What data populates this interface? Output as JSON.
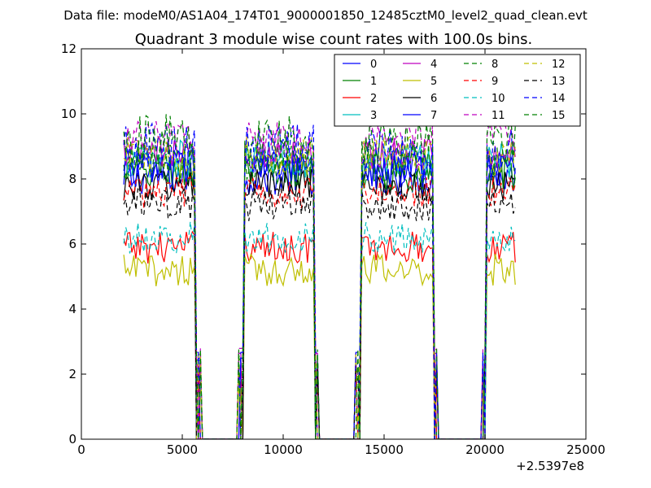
{
  "figure": {
    "suptitle": "Data file: modeM0/AS1A04_174T01_9000001850_12485cztM0_level2_quad_clean.evt"
  },
  "chart_data": {
    "type": "line",
    "title": "Quadrant 3 module wise count rates with 100.0s bins.",
    "xlabel": "",
    "ylabel": "",
    "xlim": [
      0,
      25000
    ],
    "ylim": [
      0,
      12
    ],
    "x_ticks": [
      0,
      5000,
      10000,
      15000,
      20000,
      25000
    ],
    "x_tick_labels": [
      "0",
      "5000",
      "10000",
      "15000",
      "20000",
      "25000"
    ],
    "y_ticks": [
      0,
      2,
      4,
      6,
      8,
      10,
      12
    ],
    "y_tick_labels": [
      "0",
      "2",
      "4",
      "6",
      "8",
      "10",
      "12"
    ],
    "x_offset_label": "+2.5397e8",
    "grid": false,
    "legend_position": "top-right",
    "legend_columns": 4,
    "segments": [
      {
        "t0": 2100,
        "t1": 5600
      },
      {
        "t0": 8100,
        "t1": 11500
      },
      {
        "t0": 13900,
        "t1": 17400
      },
      {
        "t0": 20100,
        "t1": 21500
      }
    ],
    "gaps": [
      {
        "t0": 5900,
        "t1": 7800
      },
      {
        "t0": 11700,
        "t1": 13600
      },
      {
        "t0": 17600,
        "t1": 19900
      }
    ],
    "series": [
      {
        "name": "0",
        "color": "#0000ff",
        "dash": "solid",
        "base": 8.1,
        "amp": 0.6
      },
      {
        "name": "1",
        "color": "#008000",
        "dash": "solid",
        "base": 8.2,
        "amp": 0.6
      },
      {
        "name": "2",
        "color": "#ff0000",
        "dash": "solid",
        "base": 5.9,
        "amp": 0.5
      },
      {
        "name": "3",
        "color": "#00bfbf",
        "dash": "solid",
        "base": 8.6,
        "amp": 0.6
      },
      {
        "name": "4",
        "color": "#bf00bf",
        "dash": "solid",
        "base": 8.8,
        "amp": 0.5
      },
      {
        "name": "5",
        "color": "#bfbf00",
        "dash": "solid",
        "base": 5.2,
        "amp": 0.5
      },
      {
        "name": "6",
        "color": "#000000",
        "dash": "solid",
        "base": 7.8,
        "amp": 0.5
      },
      {
        "name": "7",
        "color": "#0000ff",
        "dash": "solid",
        "base": 8.3,
        "amp": 0.6
      },
      {
        "name": "8",
        "color": "#008000",
        "dash": "dashed",
        "base": 8.5,
        "amp": 0.7
      },
      {
        "name": "9",
        "color": "#ff0000",
        "dash": "dashed",
        "base": 7.6,
        "amp": 0.5
      },
      {
        "name": "10",
        "color": "#00bfbf",
        "dash": "dashed",
        "base": 6.2,
        "amp": 0.5
      },
      {
        "name": "11",
        "color": "#bf00bf",
        "dash": "dashed",
        "base": 9.3,
        "amp": 0.5
      },
      {
        "name": "12",
        "color": "#bfbf00",
        "dash": "dashed",
        "base": 8.7,
        "amp": 0.6
      },
      {
        "name": "13",
        "color": "#000000",
        "dash": "dashed",
        "base": 7.2,
        "amp": 0.5
      },
      {
        "name": "14",
        "color": "#0000ff",
        "dash": "dashed",
        "base": 8.9,
        "amp": 0.8
      },
      {
        "name": "15",
        "color": "#008000",
        "dash": "dashed",
        "base": 9.2,
        "amp": 0.8
      }
    ]
  }
}
